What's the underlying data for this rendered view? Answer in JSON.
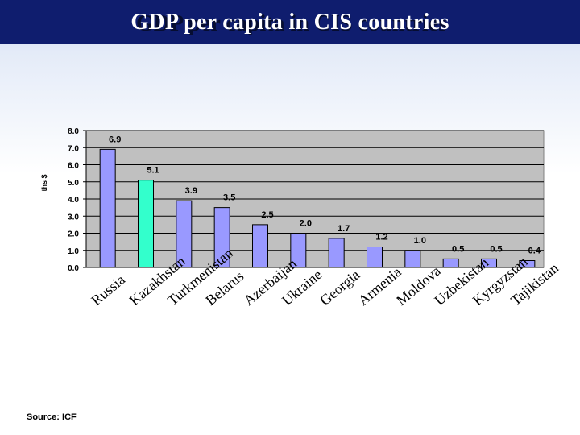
{
  "title": "GDP per capita in CIS countries",
  "source": "Source: ICF",
  "chart_data": {
    "type": "bar",
    "title": "",
    "xlabel": "",
    "ylabel": "ths $",
    "ylim": [
      0,
      8
    ],
    "yticks": [
      "0.0",
      "1.0",
      "2.0",
      "3.0",
      "4.0",
      "5.0",
      "6.0",
      "7.0",
      "8.0"
    ],
    "grid": true,
    "categories": [
      "Russia",
      "Kazakhstan",
      "Turkmenistan",
      "Belarus",
      "Azerbaijan",
      "Ukraine",
      "Georgia",
      "Armenia",
      "Moldova",
      "Uzbekistan",
      "Kyrgyzstan",
      "Tajikistan"
    ],
    "values": [
      6.9,
      5.1,
      3.9,
      3.5,
      2.5,
      2.0,
      1.7,
      1.2,
      1.0,
      0.5,
      0.5,
      0.4
    ],
    "value_labels": [
      "6.9",
      "5.1",
      "3.9",
      "3.5",
      "2.5",
      "2.0",
      "1.7",
      "1.2",
      "1.0",
      "0.5",
      "0.5",
      "0.4"
    ],
    "colors": {
      "default_bar": "#9999ff",
      "highlight_bar": "#33ffcc",
      "plot_bg": "#c0c0c0",
      "title_bar": "#0f1d6e"
    },
    "highlight_index": 1
  }
}
